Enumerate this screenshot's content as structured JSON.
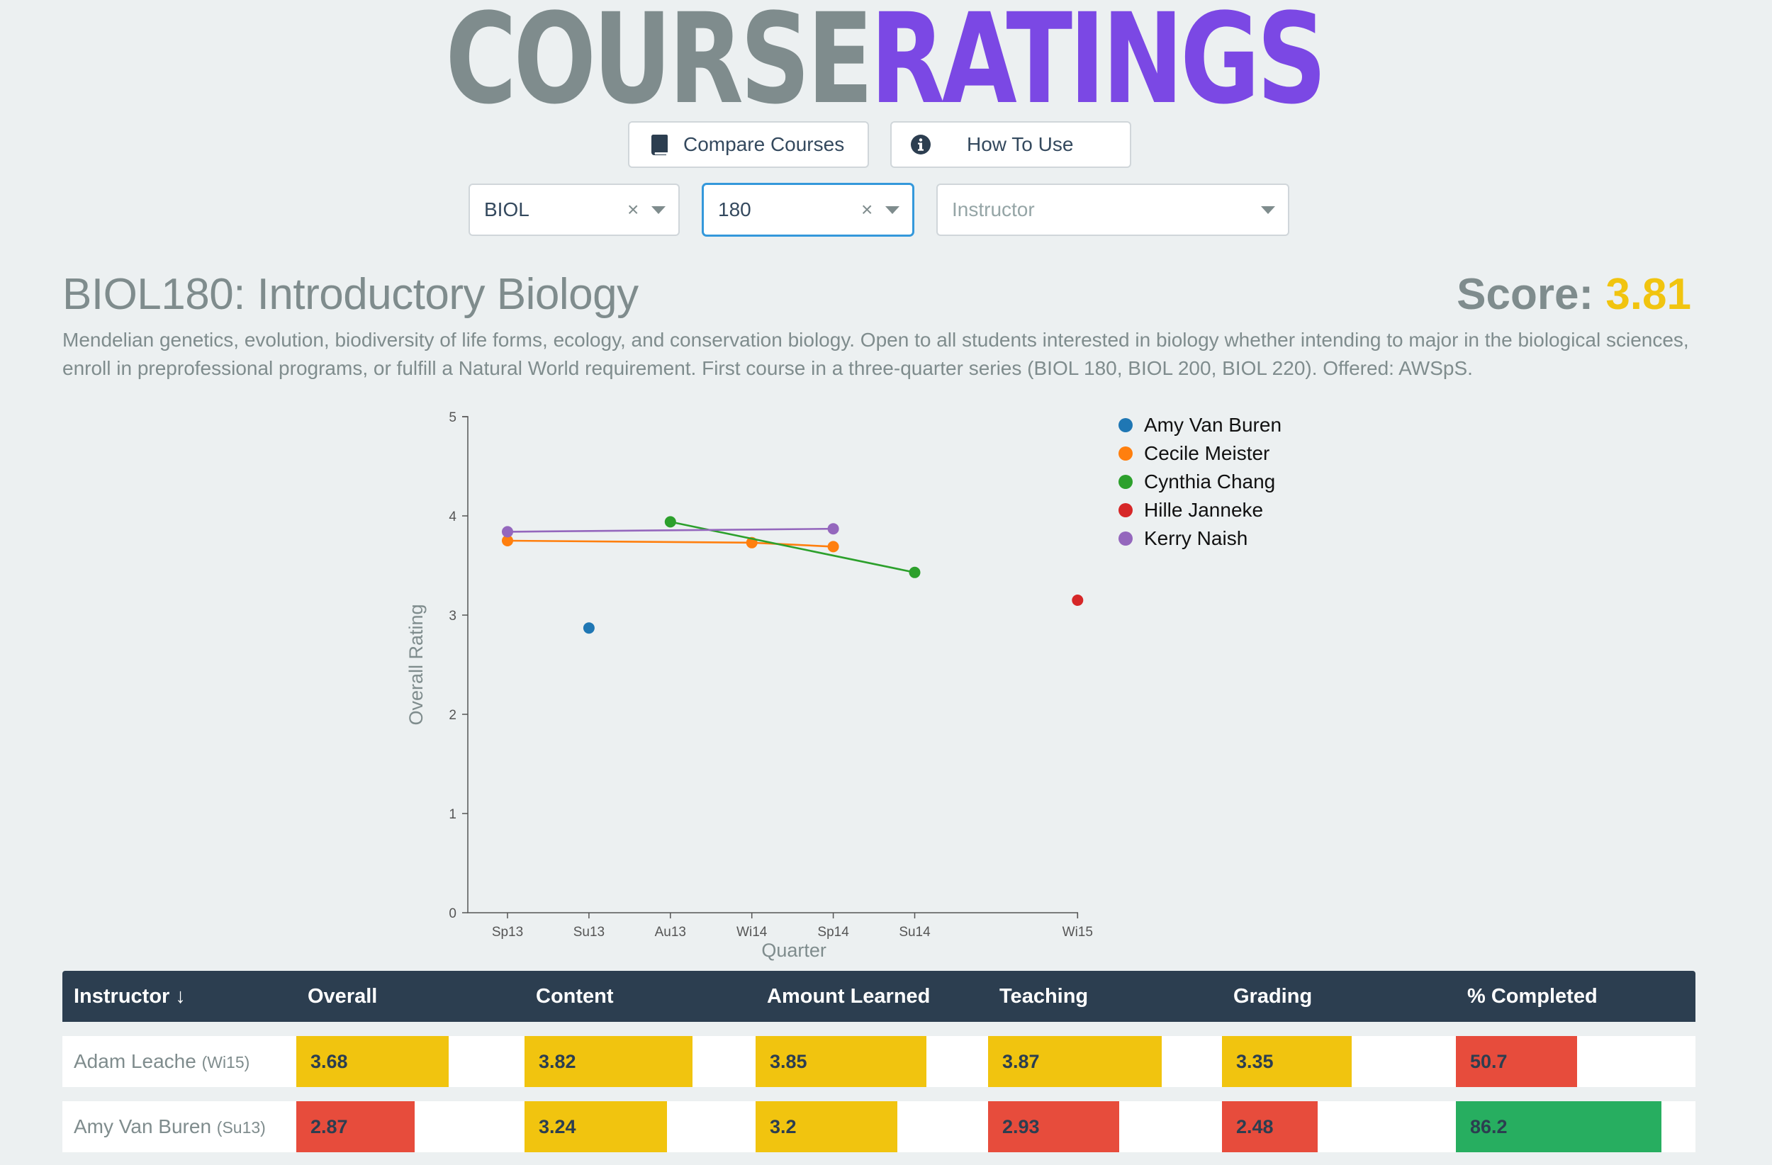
{
  "header": {
    "logo_part1": "COURSE",
    "logo_part2": "RATINGS"
  },
  "buttons": {
    "compare_label": "Compare Courses",
    "compare_icon": "book-icon",
    "howto_label": "How To Use",
    "howto_icon": "info-circle-icon"
  },
  "filters": {
    "department": {
      "value": "BIOL",
      "clear": "×"
    },
    "number": {
      "value": "180",
      "clear": "×"
    },
    "instructor": {
      "placeholder": "Instructor"
    }
  },
  "course": {
    "title": "BIOL180: Introductory Biology",
    "score_label": "Score:",
    "score_value": "3.81",
    "description": "Mendelian genetics, evolution, biodiversity of life forms, ecology, and conservation biology. Open to all students interested in biology whether intending to major in the biological sciences, enroll in preprofessional programs, or fulfill a Natural World requirement. First course in a three-quarter series (BIOL 180, BIOL 200, BIOL 220). Offered: AWSpS."
  },
  "chart_data": {
    "type": "line",
    "xlabel": "Quarter",
    "ylabel": "Overall Rating",
    "ylim": [
      0,
      5
    ],
    "yticks": [
      "0",
      "1",
      "2",
      "3",
      "4",
      "5"
    ],
    "categories": [
      "Sp13",
      "Su13",
      "Au13",
      "Wi14",
      "Sp14",
      "Su14",
      "Wi15"
    ],
    "category_positions": [
      0,
      1,
      2,
      3,
      4,
      5,
      7
    ],
    "legend_position": "top-right",
    "series": [
      {
        "name": "Amy Van Buren",
        "color": "#1f77b4",
        "points": [
          [
            "Su13",
            2.87
          ]
        ]
      },
      {
        "name": "Cecile Meister",
        "color": "#ff7f0e",
        "points": [
          [
            "Sp13",
            3.75
          ],
          [
            "Wi14",
            3.73
          ],
          [
            "Sp14",
            3.69
          ]
        ]
      },
      {
        "name": "Cynthia Chang",
        "color": "#2ca02c",
        "points": [
          [
            "Au13",
            3.94
          ],
          [
            "Su14",
            3.43
          ]
        ]
      },
      {
        "name": "Hille Janneke",
        "color": "#d62728",
        "points": [
          [
            "Wi15",
            3.15
          ]
        ]
      },
      {
        "name": "Kerry Naish",
        "color": "#9467bd",
        "points": [
          [
            "Sp13",
            3.84
          ],
          [
            "Sp14",
            3.87
          ]
        ]
      }
    ]
  },
  "table": {
    "headers": [
      "Instructor ↓",
      "Overall",
      "Content",
      "Amount Learned",
      "Teaching",
      "Grading",
      "% Completed"
    ],
    "colors": {
      "yellow": "#f1c40f",
      "red": "#e74c3c",
      "green": "#27ae60"
    },
    "rows": [
      {
        "name": "Adam Leache",
        "quarter": "(Wi15)",
        "cells": [
          {
            "value": "3.68",
            "color": "yellow",
            "fraction": 0.736
          },
          {
            "value": "3.82",
            "color": "yellow",
            "fraction": 0.764
          },
          {
            "value": "3.85",
            "color": "yellow",
            "fraction": 0.77
          },
          {
            "value": "3.87",
            "color": "yellow",
            "fraction": 0.774
          },
          {
            "value": "3.35",
            "color": "yellow",
            "fraction": 0.67
          },
          {
            "value": "50.7",
            "color": "red",
            "fraction": 0.507
          }
        ]
      },
      {
        "name": "Amy Van Buren",
        "quarter": "(Su13)",
        "cells": [
          {
            "value": "2.87",
            "color": "red",
            "fraction": 0.574
          },
          {
            "value": "3.24",
            "color": "yellow",
            "fraction": 0.648
          },
          {
            "value": "3.2",
            "color": "yellow",
            "fraction": 0.64
          },
          {
            "value": "2.93",
            "color": "red",
            "fraction": 0.586
          },
          {
            "value": "2.48",
            "color": "red",
            "fraction": 0.496
          },
          {
            "value": "86.2",
            "color": "green",
            "fraction": 0.862
          }
        ]
      }
    ]
  }
}
